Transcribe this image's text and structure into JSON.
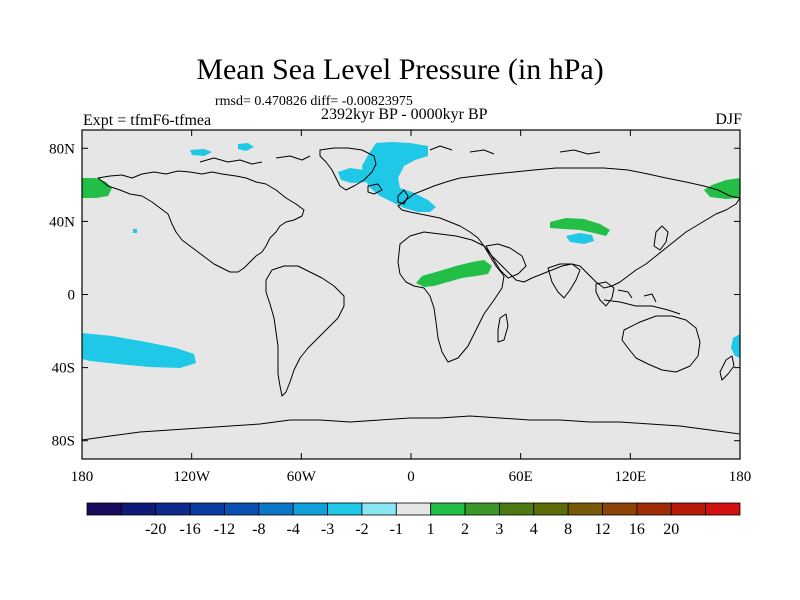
{
  "figure": {
    "title": "Mean Sea Level Pressure (in hPa)",
    "stats": "rmsd= 0.470826 diff= -0.00823975",
    "experiment": "Expt = tfmF6-tfmea",
    "period": "2392kyr BP - 0000kyr BP",
    "season": "DJF"
  },
  "map": {
    "projection": "cylindrical equidistant",
    "lon_range": [
      -180,
      180
    ],
    "lat_range": [
      -90,
      90
    ],
    "background_color": "#e6e6e6",
    "x_ticks": [
      {
        "value": -180,
        "label": "180"
      },
      {
        "value": -120,
        "label": "120W"
      },
      {
        "value": -60,
        "label": "60W"
      },
      {
        "value": 0,
        "label": "0"
      },
      {
        "value": 60,
        "label": "60E"
      },
      {
        "value": 120,
        "label": "120E"
      },
      {
        "value": 180,
        "label": "180"
      }
    ],
    "y_ticks": [
      {
        "value": 80,
        "label": "80N"
      },
      {
        "value": 40,
        "label": "40N"
      },
      {
        "value": 0,
        "label": "0"
      },
      {
        "value": -40,
        "label": "40S"
      },
      {
        "value": -80,
        "label": "80S"
      }
    ]
  },
  "colorbar": {
    "colors": [
      "#1a0a5e",
      "#0d1a78",
      "#0e2a8c",
      "#0a3ca0",
      "#0a50b4",
      "#0a78c8",
      "#10a0dc",
      "#1ec8e6",
      "#8ae6f0",
      "#e6e6e6",
      "#22be46",
      "#3c9628",
      "#4e7a14",
      "#5e6c0a",
      "#785a06",
      "#8c4406",
      "#a02c06",
      "#b41a06",
      "#d21010"
    ],
    "labels": [
      "-20",
      "-16",
      "-12",
      "-8",
      "-4",
      "-3",
      "-2",
      "-1",
      "1",
      "2",
      "3",
      "4",
      "8",
      "12",
      "16",
      "20"
    ]
  }
}
